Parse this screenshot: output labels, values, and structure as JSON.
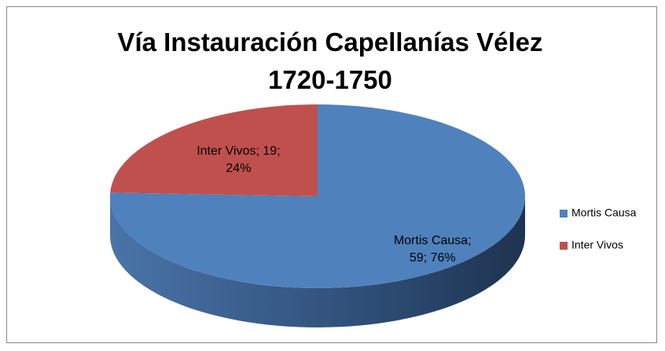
{
  "chart_data": {
    "type": "pie",
    "title": "Vía Instauración Capellanías Vélez 1720-1750",
    "categories": [
      "Mortis Causa",
      "Inter Vivos"
    ],
    "values": [
      59,
      19
    ],
    "value_labels": [
      "Mortis Causa; 59; 76%",
      "Inter Vivos; 19; 24%"
    ],
    "colors": [
      "#4f81bd",
      "#c0504d"
    ],
    "legend": "right"
  }
}
